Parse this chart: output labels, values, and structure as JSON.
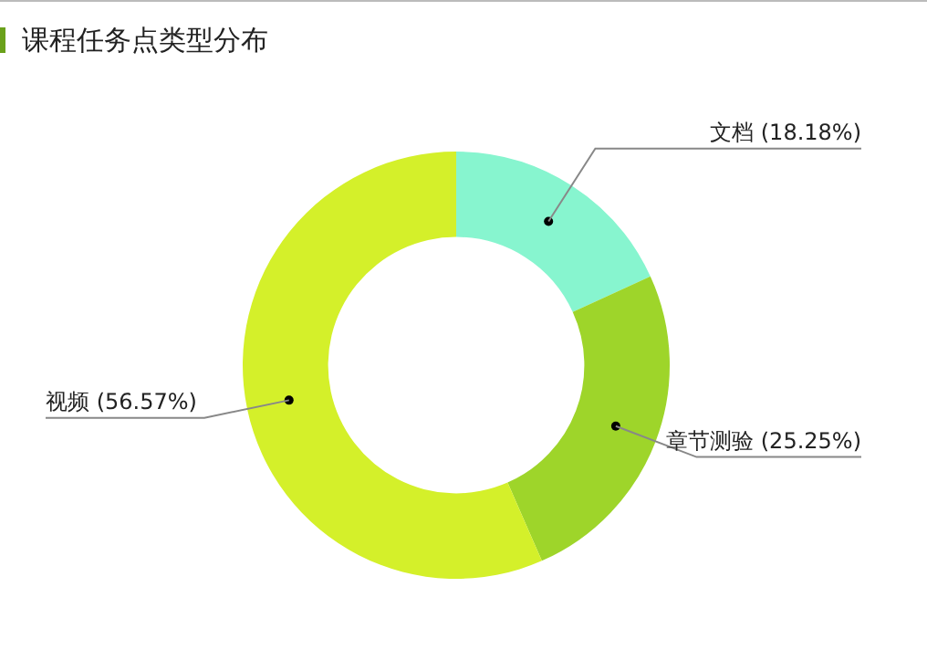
{
  "chart_data": {
    "type": "donut",
    "title": "课程任务点类型分布",
    "categories": [
      "文档",
      "章节测验",
      "视频"
    ],
    "values": [
      18.18,
      25.25,
      56.57
    ],
    "colors": [
      "#87f5cf",
      "#9ed52a",
      "#d4f02a"
    ],
    "value_labels": [
      "(18.18%)",
      "(25.25%)",
      "(56.57%)"
    ],
    "legend": false
  }
}
